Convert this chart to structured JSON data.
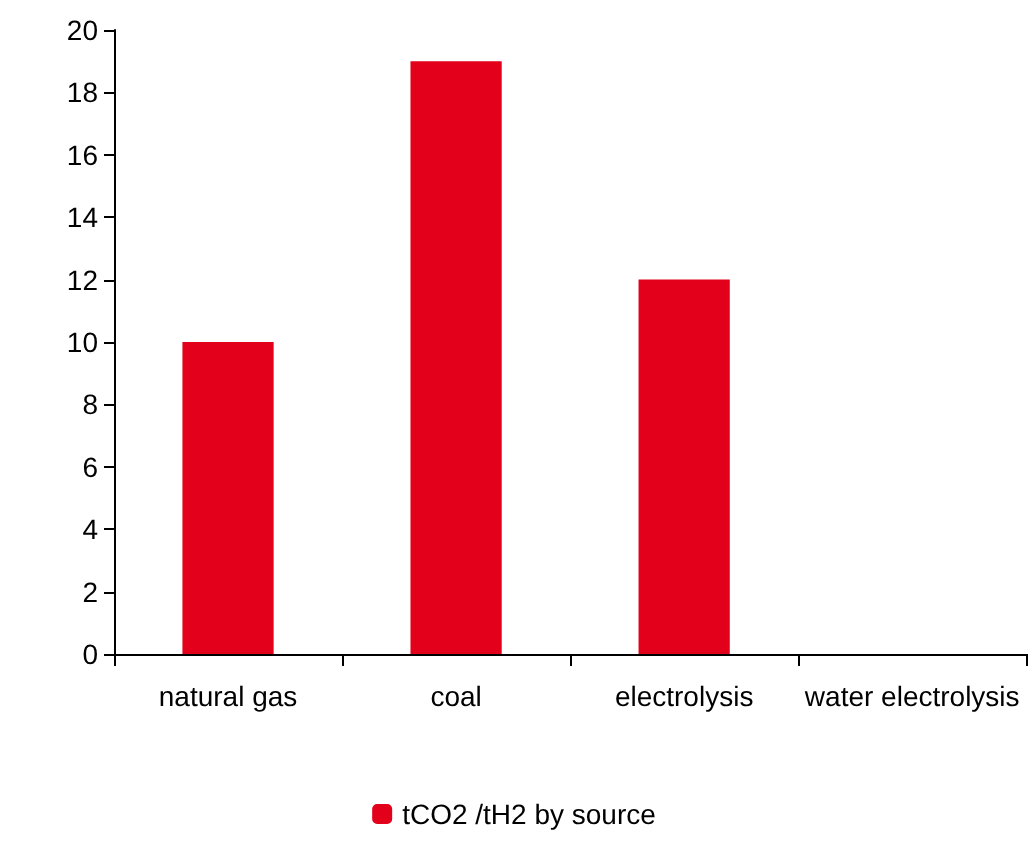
{
  "chart_data": {
    "type": "bar",
    "categories": [
      "natural gas",
      "coal",
      "electrolysis",
      "water electrolysis"
    ],
    "series": [
      {
        "name": "tCO2 /tH2 by source",
        "color": "#e2001a",
        "values": [
          10,
          19,
          12,
          0
        ]
      }
    ],
    "ylim": [
      0,
      20
    ],
    "yticks": [
      0,
      2,
      4,
      6,
      8,
      10,
      12,
      14,
      16,
      18,
      20
    ],
    "grid": false,
    "legend": "bottom"
  }
}
